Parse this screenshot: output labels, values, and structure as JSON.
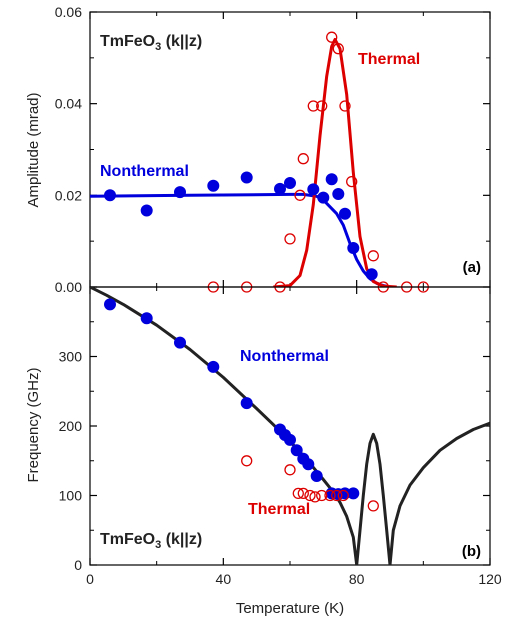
{
  "chart_data": [
    {
      "panel": "(a)",
      "type": "scatter",
      "title": "TmFeO",
      "title_sub": "3",
      "title_suffix": " (k||z)",
      "xlabel": "",
      "ylabel": "Amplitude (mrad)",
      "xlim": [
        0,
        120
      ],
      "ylim": [
        0,
        0.06
      ],
      "yticks": [
        "0.00",
        "0.02",
        "0.04",
        "0.06"
      ],
      "xticks": [
        0,
        40,
        80,
        120
      ],
      "grid": false,
      "series": [
        {
          "name": "Nonthermal",
          "color": "#0000dd",
          "marker": "filled-circle",
          "points": [
            [
              6,
              0.02
            ],
            [
              17,
              0.0167
            ],
            [
              27,
              0.0207
            ],
            [
              37,
              0.0221
            ],
            [
              47,
              0.0239
            ],
            [
              57,
              0.0214
            ],
            [
              60,
              0.0227
            ],
            [
              67,
              0.0213
            ],
            [
              70,
              0.0195
            ],
            [
              72.5,
              0.0235
            ],
            [
              74.5,
              0.0203
            ],
            [
              76.5,
              0.016
            ],
            [
              79,
              0.0085
            ],
            [
              84.5,
              0.0028
            ]
          ]
        },
        {
          "name": "Thermal",
          "color": "#dd0000",
          "marker": "open-circle",
          "points": [
            [
              37,
              0.0
            ],
            [
              47,
              0.0
            ],
            [
              57,
              0.0
            ],
            [
              60,
              0.0105
            ],
            [
              63,
              0.02
            ],
            [
              64,
              0.028
            ],
            [
              67,
              0.0395
            ],
            [
              69.5,
              0.0395
            ],
            [
              72.5,
              0.0545
            ],
            [
              74.5,
              0.052
            ],
            [
              76.5,
              0.0395
            ],
            [
              78.5,
              0.023
            ],
            [
              85,
              0.0068
            ],
            [
              88,
              0.0
            ],
            [
              95,
              0.0
            ],
            [
              100,
              0.0
            ]
          ]
        }
      ],
      "fit_curves": [
        {
          "name": "Nonthermal fit",
          "color": "#0000dd",
          "points": [
            [
              0,
              0.0198
            ],
            [
              30,
              0.02
            ],
            [
              60,
              0.0202
            ],
            [
              64,
              0.0202
            ],
            [
              68,
              0.0198
            ],
            [
              70,
              0.019
            ],
            [
              72,
              0.0175
            ],
            [
              74,
              0.016
            ],
            [
              76,
              0.0135
            ],
            [
              78,
              0.0095
            ],
            [
              80,
              0.006
            ],
            [
              82,
              0.0035
            ],
            [
              84,
              0.0018
            ],
            [
              86,
              0.0008
            ],
            [
              88,
              0.0003
            ],
            [
              90,
              0.0
            ]
          ]
        },
        {
          "name": "Thermal fit",
          "color": "#dd0000",
          "points": [
            [
              55,
              0.0
            ],
            [
              60,
              0.0003
            ],
            [
              63,
              0.0025
            ],
            [
              65,
              0.008
            ],
            [
              67,
              0.018
            ],
            [
              69,
              0.033
            ],
            [
              71,
              0.046
            ],
            [
              72.5,
              0.0525
            ],
            [
              73.5,
              0.054
            ],
            [
              75,
              0.052
            ],
            [
              77,
              0.042
            ],
            [
              79,
              0.025
            ],
            [
              81,
              0.011
            ],
            [
              83,
              0.004
            ],
            [
              85,
              0.0012
            ],
            [
              88,
              0.0002
            ],
            [
              92,
              0.0
            ]
          ]
        }
      ],
      "annotations": {
        "nonthermal": "Nonthermal",
        "thermal": "Thermal"
      }
    },
    {
      "panel": "(b)",
      "type": "scatter",
      "title": "TmFeO",
      "title_sub": "3",
      "title_suffix": " (k||z)",
      "xlabel": "Temperature (K)",
      "ylabel": "Frequency (GHz)",
      "xlim": [
        0,
        120
      ],
      "ylim": [
        0,
        400
      ],
      "yticks": [
        0,
        100,
        200,
        300
      ],
      "xticks": [
        0,
        40,
        80,
        120
      ],
      "grid": false,
      "series": [
        {
          "name": "Nonthermal",
          "color": "#0000dd",
          "marker": "filled-circle",
          "points": [
            [
              6,
              375
            ],
            [
              17,
              355
            ],
            [
              27,
              320
            ],
            [
              37,
              285
            ],
            [
              47,
              233
            ],
            [
              57,
              195
            ],
            [
              58.5,
              187
            ],
            [
              60,
              180
            ],
            [
              62,
              165
            ],
            [
              64,
              153
            ],
            [
              65.5,
              145
            ],
            [
              68,
              128
            ],
            [
              72.5,
              103
            ],
            [
              74.5,
              102
            ],
            [
              76.5,
              103
            ],
            [
              79,
              103
            ]
          ]
        },
        {
          "name": "Thermal",
          "color": "#dd0000",
          "marker": "open-circle",
          "points": [
            [
              47,
              150
            ],
            [
              60,
              137
            ],
            [
              62.5,
              103
            ],
            [
              64,
              103
            ],
            [
              66,
              100
            ],
            [
              67.5,
              98
            ],
            [
              69.5,
              100
            ],
            [
              72,
              100
            ],
            [
              74,
              100
            ],
            [
              76,
              100
            ],
            [
              85,
              85
            ]
          ]
        }
      ],
      "fit_curve": {
        "name": "fit",
        "color": "#222222",
        "points": [
          [
            0,
            400
          ],
          [
            5,
            388
          ],
          [
            10,
            375
          ],
          [
            20,
            345
          ],
          [
            30,
            310
          ],
          [
            40,
            270
          ],
          [
            50,
            225
          ],
          [
            55,
            202
          ],
          [
            60,
            178
          ],
          [
            65,
            152
          ],
          [
            70,
            123
          ],
          [
            73,
            105
          ],
          [
            75,
            90
          ],
          [
            77,
            70
          ],
          [
            79,
            40
          ],
          [
            80,
            0
          ],
          [
            81,
            50
          ],
          [
            82,
            100
          ],
          [
            83,
            145
          ],
          [
            84,
            175
          ],
          [
            85,
            188
          ],
          [
            86,
            175
          ],
          [
            87,
            145
          ],
          [
            88,
            100
          ],
          [
            89,
            50
          ],
          [
            90,
            0
          ],
          [
            91,
            50
          ],
          [
            93,
            85
          ],
          [
            96,
            115
          ],
          [
            100,
            140
          ],
          [
            105,
            165
          ],
          [
            110,
            182
          ],
          [
            115,
            195
          ],
          [
            120,
            204
          ]
        ]
      },
      "annotations": {
        "nonthermal": "Nonthermal",
        "thermal": "Thermal"
      }
    }
  ]
}
